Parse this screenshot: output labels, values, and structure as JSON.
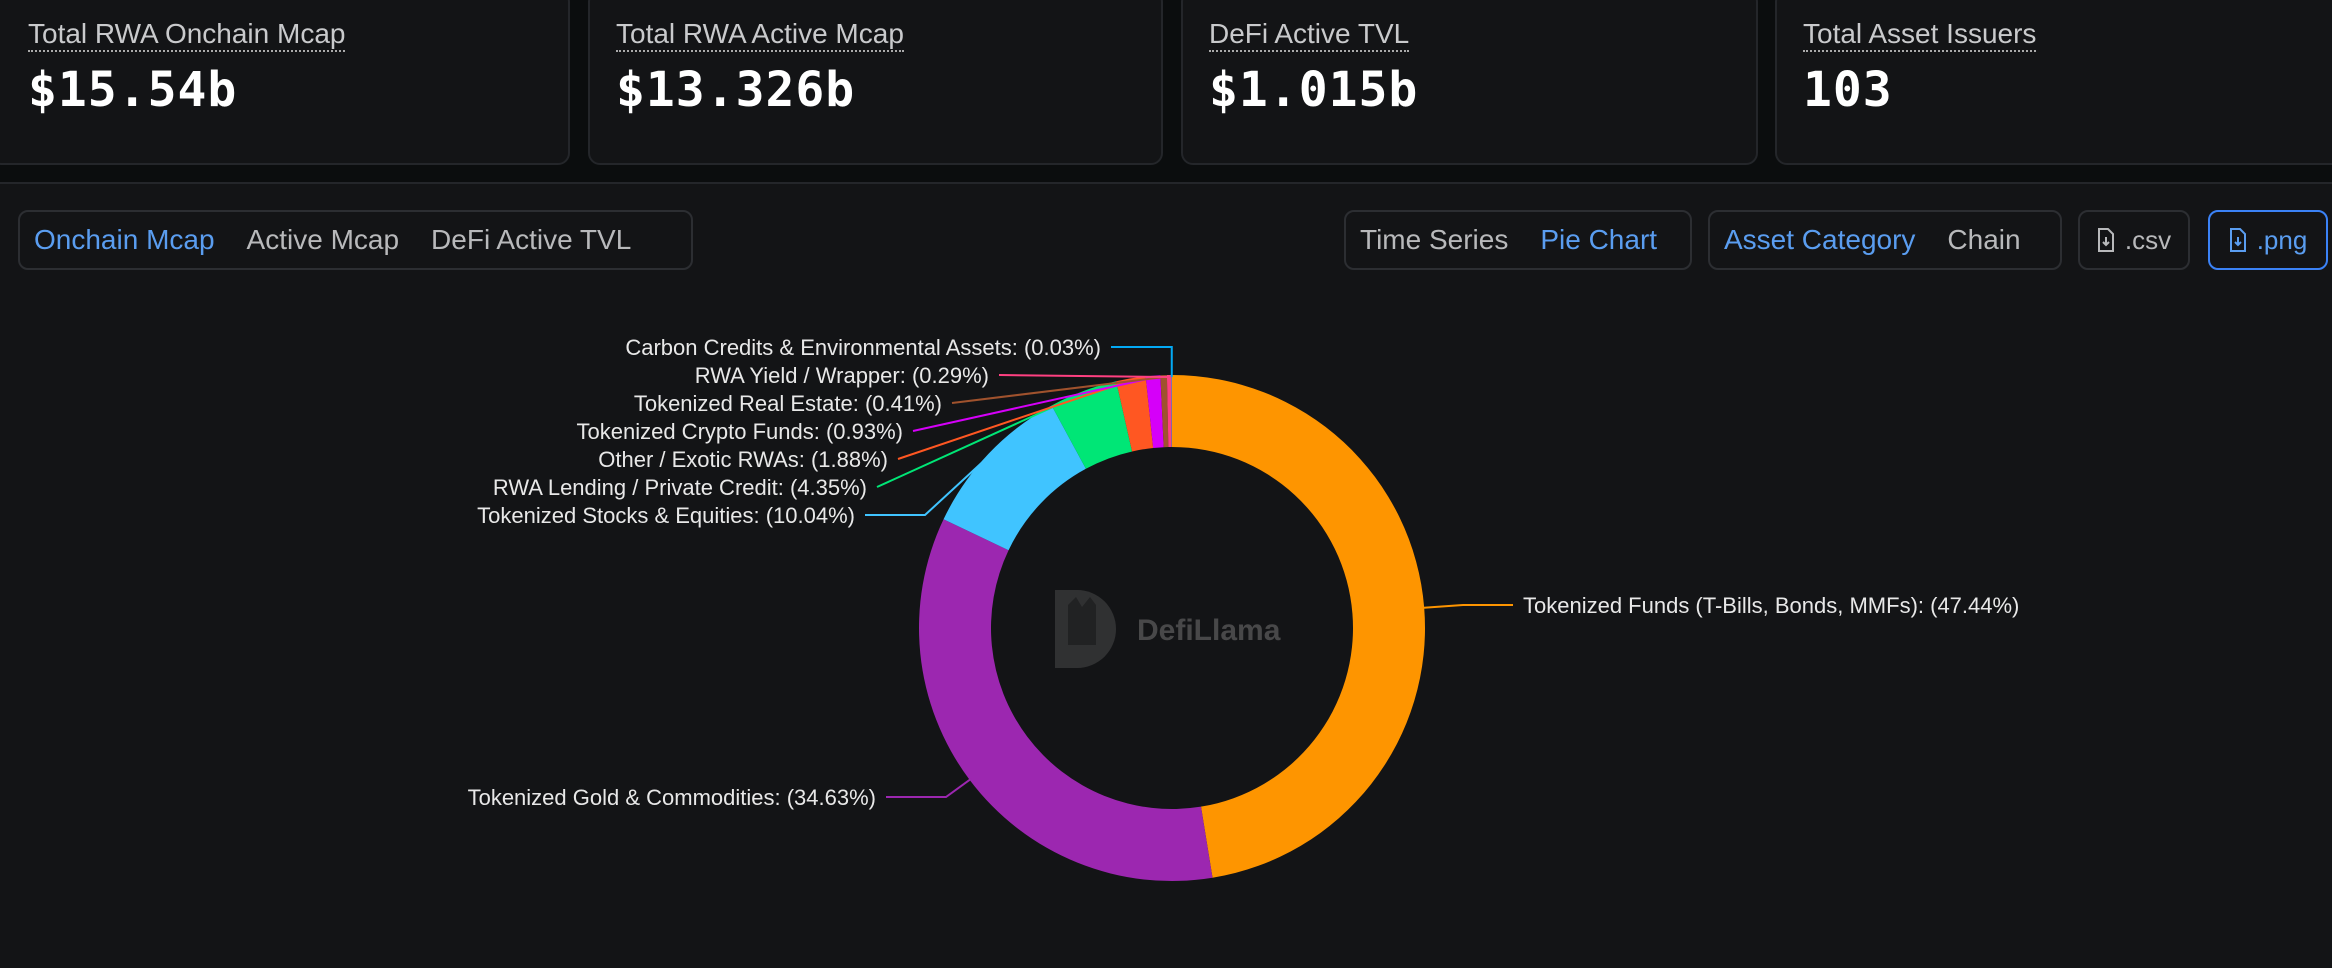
{
  "stats": [
    {
      "label": "Total RWA Onchain Mcap",
      "value": "$15.54b"
    },
    {
      "label": "Total RWA Active Mcap",
      "value": "$13.326b"
    },
    {
      "label": "DeFi Active TVL",
      "value": "$1.015b"
    },
    {
      "label": "Total Asset Issuers",
      "value": "103"
    }
  ],
  "metric_tabs": [
    "Onchain Mcap",
    "Active Mcap",
    "DeFi Active TVL"
  ],
  "view_tabs": [
    "Time Series",
    "Pie Chart"
  ],
  "group_tabs": [
    "Asset Category",
    "Chain"
  ],
  "downloads": {
    "csv": ".csv",
    "png": ".png",
    "icon": "file-download-icon"
  },
  "watermark": "DefiLlama",
  "chart_data": {
    "type": "pie",
    "donut": true,
    "start": "top",
    "direction": "clockwise",
    "slices": [
      {
        "name": "Tokenized Funds (T-Bills, Bonds, MMFs)",
        "value": 47.44,
        "label": "Tokenized Funds (T-Bills, Bonds, MMFs): (47.44%)",
        "color": "#fe9500"
      },
      {
        "name": "Tokenized Gold & Commodities",
        "value": 34.63,
        "label": "Tokenized Gold & Commodities: (34.63%)",
        "color": "#9c27b0"
      },
      {
        "name": "Tokenized Stocks & Equities",
        "value": 10.04,
        "label": "Tokenized Stocks & Equities: (10.04%)",
        "color": "#40c4ff"
      },
      {
        "name": "RWA Lending / Private Credit",
        "value": 4.35,
        "label": "RWA Lending / Private Credit: (4.35%)",
        "color": "#00e676"
      },
      {
        "name": "Other / Exotic RWAs",
        "value": 1.88,
        "label": "Other / Exotic RWAs: (1.88%)",
        "color": "#ff5722"
      },
      {
        "name": "Tokenized Crypto Funds",
        "value": 0.93,
        "label": "Tokenized Crypto Funds: (0.93%)",
        "color": "#d500f9"
      },
      {
        "name": "Tokenized Real Estate",
        "value": 0.41,
        "label": "Tokenized Real Estate: (0.41%)",
        "color": "#a0522d"
      },
      {
        "name": "RWA Yield / Wrapper",
        "value": 0.29,
        "label": "RWA Yield / Wrapper: (0.29%)",
        "color": "#ff4081"
      },
      {
        "name": "Carbon Credits & Environmental Assets",
        "value": 0.03,
        "label": "Carbon Credits & Environmental Assets: (0.03%)",
        "color": "#03a9f4"
      }
    ]
  }
}
